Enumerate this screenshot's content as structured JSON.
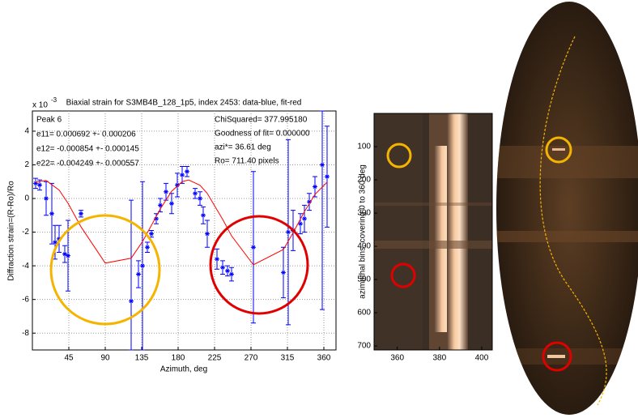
{
  "chart_data": [
    {
      "type": "errorbar",
      "title": "Biaxial strain for S3MB4B_128_1p5, index 2453: data-blue, fit-red",
      "y_exponent_base": "x 10",
      "y_exponent": "-3",
      "x_label": "Azimuth, deg",
      "y_label": "Diffraction strain=(R-Ro)/Ro",
      "annotations_left": [
        "Peak 6",
        "e11= 0.000692 +- 0.000206",
        "e12= -0.000854 +- 0.000145",
        "e22= -0.004249 +- 0.000557"
      ],
      "annotations_right": [
        "ChiSquared= 377.995180",
        "Goodness of fit= 0.000000",
        "azi*= 36.61 deg",
        "Ro= 711.40 pixels"
      ],
      "xlim": [
        0,
        375
      ],
      "xticks": [
        45,
        90,
        135,
        180,
        225,
        270,
        315,
        360
      ],
      "ylim": [
        -9,
        5.2
      ],
      "yticks": [
        4,
        2,
        0,
        -2,
        -4,
        -6,
        -8
      ],
      "grid": true,
      "series": [
        {
          "color": "#0000ff",
          "x": [
            4,
            9,
            17,
            24,
            28,
            33,
            40,
            44,
            60,
            122,
            131,
            136,
            142,
            147,
            153,
            158,
            165,
            172,
            179,
            185,
            191,
            201,
            207,
            211,
            216,
            228,
            235,
            241,
            246,
            273,
            310,
            316,
            322,
            331,
            336,
            342,
            349,
            358,
            364
          ],
          "values": [
            0.9,
            0.8,
            0.0,
            -0.9,
            -2.6,
            -2.4,
            -3.3,
            -3.4,
            -0.9,
            -6.1,
            -4.5,
            -4.0,
            -2.9,
            -2.1,
            -1.2,
            -0.4,
            0.4,
            -0.3,
            0.8,
            1.4,
            1.6,
            0.3,
            0.0,
            -1.0,
            -2.1,
            -3.6,
            -4.1,
            -4.3,
            -4.5,
            -2.9,
            -4.4,
            -2.0,
            -1.9,
            -1.5,
            -1.2,
            -0.2,
            0.7,
            2.0,
            1.3
          ],
          "errors": [
            0.3,
            0.3,
            1.0,
            1.8,
            1.0,
            0.8,
            0.5,
            2.1,
            0.2,
            6.0,
            0.8,
            5.0,
            0.3,
            0.2,
            0.3,
            0.4,
            0.5,
            0.6,
            0.7,
            0.5,
            0.3,
            0.3,
            0.4,
            0.5,
            0.8,
            0.6,
            0.4,
            0.3,
            0.4,
            4.5,
            1.5,
            5.5,
            1.2,
            0.6,
            0.8,
            0.5,
            0.6,
            8.6,
            3.0
          ]
        },
        {
          "color": "#ff0000",
          "x": [
            4,
            17,
            33,
            44,
            60,
            90,
            122,
            136,
            147,
            158,
            172,
            185,
            193,
            207,
            216,
            235,
            246,
            273,
            310,
            322,
            336,
            349,
            364
          ],
          "values": [
            0.97,
            1.07,
            0.5,
            -0.28,
            -1.68,
            -3.84,
            -3.55,
            -2.56,
            -1.6,
            -0.62,
            0.43,
            1.0,
            1.1,
            0.79,
            0.3,
            -1.24,
            -2.22,
            -3.94,
            -3.03,
            -2.04,
            -0.78,
            0.24,
            0.97
          ]
        }
      ]
    },
    {
      "type": "image",
      "y_label": "azimuthal bins, covering 0 to 360 deg",
      "xlim": [
        349,
        405
      ],
      "xticks": [
        360,
        380,
        400
      ],
      "ylim": [
        712,
        0
      ],
      "yticks": [
        100,
        200,
        300,
        400,
        500,
        600,
        700
      ]
    }
  ]
}
